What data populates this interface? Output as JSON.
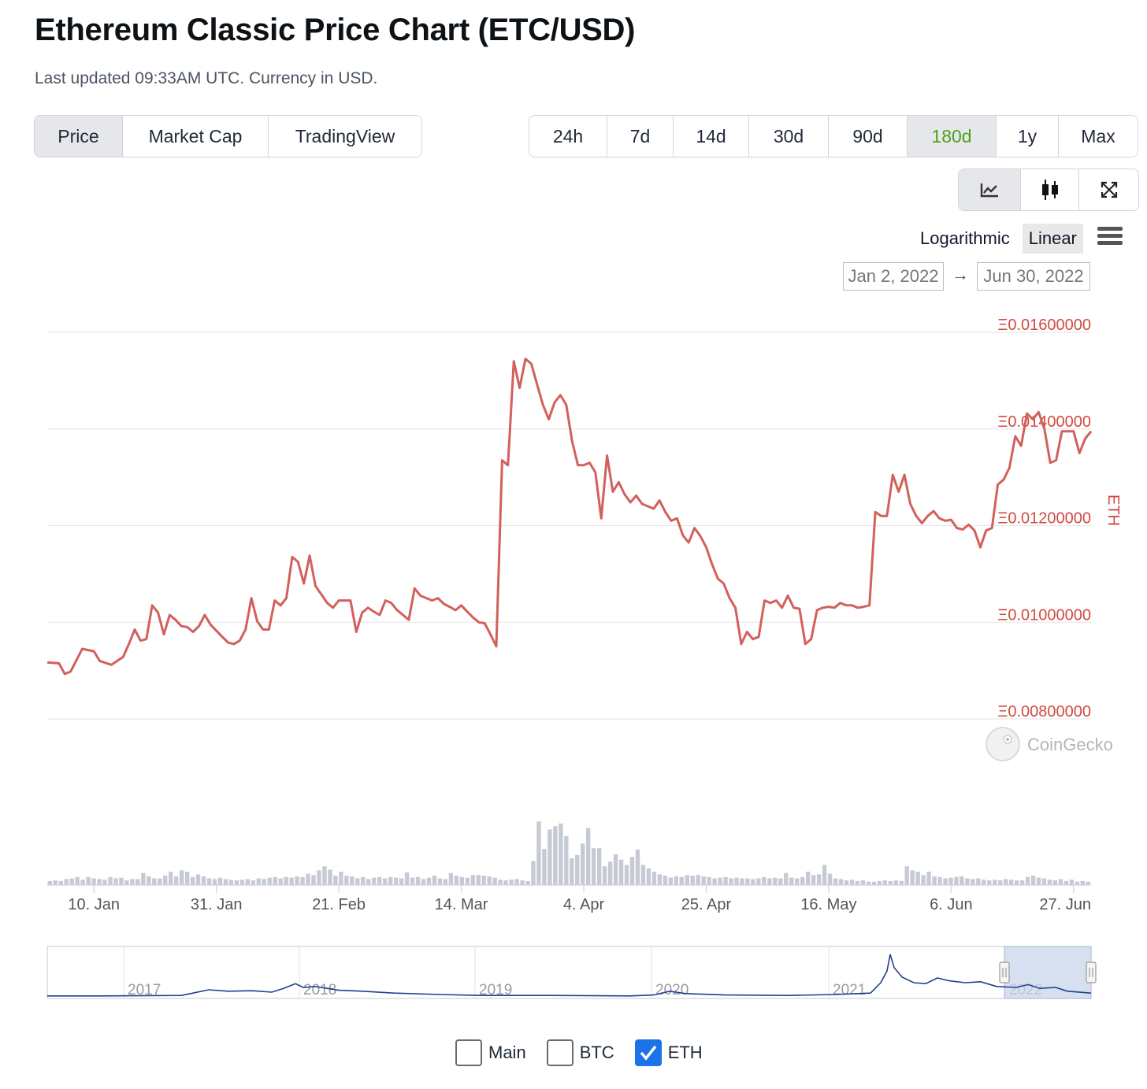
{
  "header": {
    "title": "Ethereum Classic Price Chart (ETC/USD)",
    "subtitle": "Last updated 09:33AM UTC. Currency in USD."
  },
  "tabs": [
    {
      "label": "Price",
      "active": true
    },
    {
      "label": "Market Cap",
      "active": false
    },
    {
      "label": "TradingView",
      "active": false
    }
  ],
  "ranges": [
    {
      "label": "24h",
      "active": false
    },
    {
      "label": "7d",
      "active": false
    },
    {
      "label": "14d",
      "active": false
    },
    {
      "label": "30d",
      "active": false
    },
    {
      "label": "90d",
      "active": false
    },
    {
      "label": "180d",
      "active": true
    },
    {
      "label": "1y",
      "active": false
    },
    {
      "label": "Max",
      "active": false
    }
  ],
  "tools": [
    {
      "icon": "line-chart-icon",
      "active": true
    },
    {
      "icon": "candlestick-icon",
      "active": false
    },
    {
      "icon": "fullscreen-icon",
      "active": false
    }
  ],
  "scale": {
    "log_label": "Logarithmic",
    "linear_label": "Linear",
    "active": "Linear"
  },
  "date_range": {
    "from": "Jan 2, 2022",
    "arrow": "→",
    "to": "Jun 30, 2022"
  },
  "watermark": "CoinGecko",
  "series_toggles": [
    {
      "label": "Main",
      "checked": false
    },
    {
      "label": "BTC",
      "checked": false
    },
    {
      "label": "ETH",
      "checked": true
    }
  ],
  "colors": {
    "line": "#d2605c",
    "axis_text": "#d04a40",
    "volume": "#c5cad3",
    "navigator": "#1f3f8f",
    "accent_green": "#4fa118",
    "check_blue": "#1a73e8"
  },
  "chart_data": {
    "type": "line",
    "title": "",
    "ylabel": "ETH",
    "yscale": "linear",
    "ylim": [
      0.008,
      0.016
    ],
    "yticks": [
      0.008,
      0.01,
      0.012,
      0.014,
      0.016
    ],
    "ytick_labels": [
      "Ξ0.00800000",
      "Ξ0.01000000",
      "Ξ0.01200000",
      "Ξ0.01400000",
      "Ξ0.01600000"
    ],
    "x_start": "2022-01-02",
    "x_end": "2022-06-30",
    "xtick_labels": [
      "10. Jan",
      "31. Jan",
      "21. Feb",
      "14. Mar",
      "4. Apr",
      "25. Apr",
      "16. May",
      "6. Jun",
      "27. Jun"
    ],
    "xtick_dates": [
      "2022-01-10",
      "2022-01-31",
      "2022-02-21",
      "2022-03-14",
      "2022-04-04",
      "2022-04-25",
      "2022-05-16",
      "2022-06-06",
      "2022-06-27"
    ],
    "grid": true,
    "series": [
      {
        "name": "ETH",
        "points": [
          [
            "2022-01-02",
            0.00917
          ],
          [
            "2022-01-04",
            0.00915
          ],
          [
            "2022-01-05",
            0.00893
          ],
          [
            "2022-01-06",
            0.00898
          ],
          [
            "2022-01-08",
            0.00945
          ],
          [
            "2022-01-10",
            0.0094
          ],
          [
            "2022-01-11",
            0.0092
          ],
          [
            "2022-01-13",
            0.00912
          ],
          [
            "2022-01-15",
            0.00928
          ],
          [
            "2022-01-16",
            0.00955
          ],
          [
            "2022-01-17",
            0.00985
          ],
          [
            "2022-01-18",
            0.00962
          ],
          [
            "2022-01-19",
            0.00965
          ],
          [
            "2022-01-20",
            0.01035
          ],
          [
            "2022-01-21",
            0.0102
          ],
          [
            "2022-01-22",
            0.00975
          ],
          [
            "2022-01-23",
            0.01015
          ],
          [
            "2022-01-24",
            0.01005
          ],
          [
            "2022-01-25",
            0.00992
          ],
          [
            "2022-01-26",
            0.0099
          ],
          [
            "2022-01-27",
            0.0098
          ],
          [
            "2022-01-28",
            0.00992
          ],
          [
            "2022-01-29",
            0.01015
          ],
          [
            "2022-01-30",
            0.00995
          ],
          [
            "2022-02-01",
            0.0097
          ],
          [
            "2022-02-02",
            0.00958
          ],
          [
            "2022-02-03",
            0.00955
          ],
          [
            "2022-02-04",
            0.00962
          ],
          [
            "2022-02-05",
            0.00985
          ],
          [
            "2022-02-06",
            0.0105
          ],
          [
            "2022-02-07",
            0.01002
          ],
          [
            "2022-02-08",
            0.00985
          ],
          [
            "2022-02-09",
            0.00985
          ],
          [
            "2022-02-10",
            0.01045
          ],
          [
            "2022-02-11",
            0.01035
          ],
          [
            "2022-02-12",
            0.0105
          ],
          [
            "2022-02-13",
            0.01135
          ],
          [
            "2022-02-14",
            0.01125
          ],
          [
            "2022-02-15",
            0.0108
          ],
          [
            "2022-02-16",
            0.01138
          ],
          [
            "2022-02-17",
            0.01075
          ],
          [
            "2022-02-18",
            0.01058
          ],
          [
            "2022-02-19",
            0.0104
          ],
          [
            "2022-02-20",
            0.0103
          ],
          [
            "2022-02-21",
            0.01045
          ],
          [
            "2022-02-22",
            0.01045
          ],
          [
            "2022-02-23",
            0.01045
          ],
          [
            "2022-02-24",
            0.0098
          ],
          [
            "2022-02-25",
            0.0102
          ],
          [
            "2022-02-26",
            0.0103
          ],
          [
            "2022-02-27",
            0.01022
          ],
          [
            "2022-02-28",
            0.01015
          ],
          [
            "2022-03-01",
            0.01045
          ],
          [
            "2022-03-02",
            0.0104
          ],
          [
            "2022-03-03",
            0.01025
          ],
          [
            "2022-03-04",
            0.01015
          ],
          [
            "2022-03-05",
            0.01005
          ],
          [
            "2022-03-06",
            0.0107
          ],
          [
            "2022-03-07",
            0.01055
          ],
          [
            "2022-03-08",
            0.0105
          ],
          [
            "2022-03-09",
            0.01045
          ],
          [
            "2022-03-10",
            0.0105
          ],
          [
            "2022-03-11",
            0.01038
          ],
          [
            "2022-03-12",
            0.01032
          ],
          [
            "2022-03-13",
            0.01025
          ],
          [
            "2022-03-14",
            0.01035
          ],
          [
            "2022-03-15",
            0.01022
          ],
          [
            "2022-03-16",
            0.0101
          ],
          [
            "2022-03-17",
            0.01
          ],
          [
            "2022-03-18",
            0.00998
          ],
          [
            "2022-03-19",
            0.00975
          ],
          [
            "2022-03-20",
            0.0095
          ],
          [
            "2022-03-21",
            0.01335
          ],
          [
            "2022-03-22",
            0.01325
          ],
          [
            "2022-03-23",
            0.0154
          ],
          [
            "2022-03-24",
            0.01485
          ],
          [
            "2022-03-25",
            0.01545
          ],
          [
            "2022-03-26",
            0.01535
          ],
          [
            "2022-03-27",
            0.01492
          ],
          [
            "2022-03-28",
            0.0145
          ],
          [
            "2022-03-29",
            0.0142
          ],
          [
            "2022-03-30",
            0.01455
          ],
          [
            "2022-03-31",
            0.0147
          ],
          [
            "2022-04-01",
            0.0145
          ],
          [
            "2022-04-02",
            0.01375
          ],
          [
            "2022-04-03",
            0.01325
          ],
          [
            "2022-04-04",
            0.01325
          ],
          [
            "2022-04-05",
            0.0133
          ],
          [
            "2022-04-06",
            0.0131
          ],
          [
            "2022-04-07",
            0.01215
          ],
          [
            "2022-04-08",
            0.01345
          ],
          [
            "2022-04-09",
            0.0127
          ],
          [
            "2022-04-10",
            0.0129
          ],
          [
            "2022-04-11",
            0.01265
          ],
          [
            "2022-04-12",
            0.01248
          ],
          [
            "2022-04-13",
            0.01262
          ],
          [
            "2022-04-14",
            0.01245
          ],
          [
            "2022-04-15",
            0.0124
          ],
          [
            "2022-04-16",
            0.01235
          ],
          [
            "2022-04-17",
            0.01252
          ],
          [
            "2022-04-18",
            0.01228
          ],
          [
            "2022-04-19",
            0.0121
          ],
          [
            "2022-04-20",
            0.01215
          ],
          [
            "2022-04-21",
            0.0118
          ],
          [
            "2022-04-22",
            0.01165
          ],
          [
            "2022-04-23",
            0.01195
          ],
          [
            "2022-04-24",
            0.01178
          ],
          [
            "2022-04-25",
            0.01155
          ],
          [
            "2022-04-26",
            0.0112
          ],
          [
            "2022-04-27",
            0.0109
          ],
          [
            "2022-04-28",
            0.0108
          ],
          [
            "2022-04-29",
            0.0105
          ],
          [
            "2022-04-30",
            0.0103
          ],
          [
            "2022-05-01",
            0.00955
          ],
          [
            "2022-05-02",
            0.0098
          ],
          [
            "2022-05-03",
            0.00965
          ],
          [
            "2022-05-04",
            0.0097
          ],
          [
            "2022-05-05",
            0.01045
          ],
          [
            "2022-05-06",
            0.0104
          ],
          [
            "2022-05-07",
            0.01045
          ],
          [
            "2022-05-08",
            0.0103
          ],
          [
            "2022-05-09",
            0.01055
          ],
          [
            "2022-05-10",
            0.0103
          ],
          [
            "2022-05-11",
            0.01028
          ],
          [
            "2022-05-12",
            0.00955
          ],
          [
            "2022-05-13",
            0.00965
          ],
          [
            "2022-05-14",
            0.01025
          ],
          [
            "2022-05-15",
            0.0103
          ],
          [
            "2022-05-16",
            0.01032
          ],
          [
            "2022-05-17",
            0.0103
          ],
          [
            "2022-05-18",
            0.0104
          ],
          [
            "2022-05-19",
            0.01035
          ],
          [
            "2022-05-20",
            0.01035
          ],
          [
            "2022-05-21",
            0.0103
          ],
          [
            "2022-05-22",
            0.01032
          ],
          [
            "2022-05-23",
            0.01035
          ],
          [
            "2022-05-24",
            0.01228
          ],
          [
            "2022-05-25",
            0.0122
          ],
          [
            "2022-05-26",
            0.0122
          ],
          [
            "2022-05-27",
            0.01305
          ],
          [
            "2022-05-28",
            0.0127
          ],
          [
            "2022-05-29",
            0.01305
          ],
          [
            "2022-05-30",
            0.01245
          ],
          [
            "2022-05-31",
            0.0122
          ],
          [
            "2022-06-01",
            0.01205
          ],
          [
            "2022-06-02",
            0.0122
          ],
          [
            "2022-06-03",
            0.0123
          ],
          [
            "2022-06-04",
            0.01215
          ],
          [
            "2022-06-05",
            0.0121
          ],
          [
            "2022-06-06",
            0.01212
          ],
          [
            "2022-06-07",
            0.01195
          ],
          [
            "2022-06-08",
            0.01192
          ],
          [
            "2022-06-09",
            0.01202
          ],
          [
            "2022-06-10",
            0.0119
          ],
          [
            "2022-06-11",
            0.01155
          ],
          [
            "2022-06-12",
            0.0119
          ],
          [
            "2022-06-13",
            0.01195
          ],
          [
            "2022-06-14",
            0.01285
          ],
          [
            "2022-06-15",
            0.01295
          ],
          [
            "2022-06-16",
            0.0132
          ],
          [
            "2022-06-17",
            0.01385
          ],
          [
            "2022-06-18",
            0.01365
          ],
          [
            "2022-06-19",
            0.01432
          ],
          [
            "2022-06-20",
            0.0142
          ],
          [
            "2022-06-21",
            0.01435
          ],
          [
            "2022-06-22",
            0.014
          ],
          [
            "2022-06-23",
            0.0133
          ],
          [
            "2022-06-24",
            0.01335
          ],
          [
            "2022-06-25",
            0.01395
          ],
          [
            "2022-06-26",
            0.01395
          ],
          [
            "2022-06-27",
            0.01395
          ],
          [
            "2022-06-28",
            0.0135
          ],
          [
            "2022-06-29",
            0.0138
          ],
          [
            "2022-06-30",
            0.01395
          ]
        ]
      }
    ],
    "volume_relative": [
      0.06,
      0.07,
      0.06,
      0.09,
      0.1,
      0.12,
      0.08,
      0.12,
      0.1,
      0.09,
      0.08,
      0.12,
      0.1,
      0.11,
      0.07,
      0.09,
      0.09,
      0.18,
      0.13,
      0.1,
      0.1,
      0.14,
      0.2,
      0.13,
      0.22,
      0.2,
      0.12,
      0.16,
      0.13,
      0.1,
      0.09,
      0.11,
      0.09,
      0.08,
      0.07,
      0.08,
      0.09,
      0.07,
      0.1,
      0.09,
      0.11,
      0.12,
      0.1,
      0.12,
      0.11,
      0.13,
      0.12,
      0.17,
      0.15,
      0.22,
      0.28,
      0.23,
      0.14,
      0.2,
      0.14,
      0.13,
      0.1,
      0.12,
      0.09,
      0.11,
      0.12,
      0.1,
      0.12,
      0.11,
      0.1,
      0.19,
      0.11,
      0.12,
      0.09,
      0.11,
      0.14,
      0.1,
      0.09,
      0.18,
      0.14,
      0.12,
      0.11,
      0.15,
      0.15,
      0.14,
      0.13,
      0.11,
      0.08,
      0.07,
      0.08,
      0.09,
      0.07,
      0.06,
      0.36,
      0.95,
      0.54,
      0.83,
      0.88,
      0.92,
      0.73,
      0.4,
      0.45,
      0.62,
      0.85,
      0.55,
      0.55,
      0.28,
      0.35,
      0.46,
      0.38,
      0.3,
      0.42,
      0.53,
      0.3,
      0.25,
      0.2,
      0.16,
      0.14,
      0.11,
      0.13,
      0.12,
      0.15,
      0.14,
      0.15,
      0.13,
      0.12,
      0.1,
      0.11,
      0.12,
      0.1,
      0.11,
      0.1,
      0.1,
      0.09,
      0.1,
      0.12,
      0.1,
      0.11,
      0.1,
      0.18,
      0.11,
      0.1,
      0.12,
      0.2,
      0.15,
      0.16,
      0.3,
      0.17,
      0.1,
      0.09,
      0.07,
      0.08,
      0.06,
      0.07,
      0.05,
      0.05,
      0.06,
      0.07,
      0.06,
      0.07,
      0.06,
      0.28,
      0.22,
      0.2,
      0.15,
      0.2,
      0.13,
      0.12,
      0.1,
      0.11,
      0.12,
      0.13,
      0.1,
      0.09,
      0.1,
      0.08,
      0.07,
      0.08,
      0.07,
      0.09,
      0.08,
      0.07,
      0.07,
      0.12,
      0.14,
      0.11,
      0.1,
      0.08,
      0.07,
      0.09,
      0.06,
      0.08,
      0.05,
      0.06,
      0.05
    ],
    "navigator": {
      "year_labels": [
        "2017",
        "2018",
        "2019",
        "2020",
        "2021",
        "2022"
      ],
      "selected_range": [
        "2022-01-02",
        "2022-06-30"
      ]
    }
  }
}
